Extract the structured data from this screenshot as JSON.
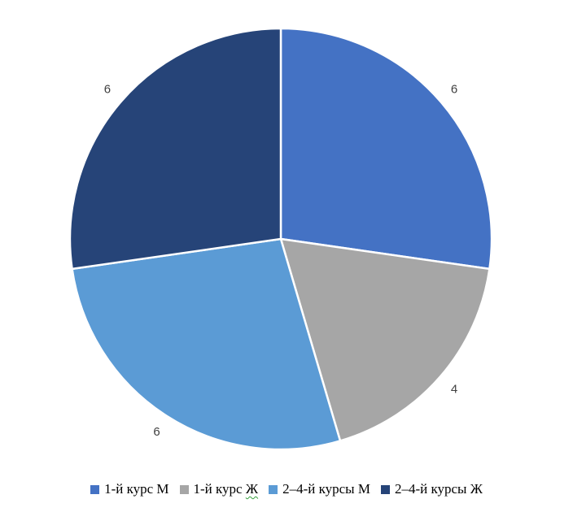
{
  "chart_data": {
    "type": "pie",
    "labels": [
      "1-й курс М",
      "1-й курс Ж",
      "2–4-й курсы М",
      "2–4-й курсы Ж"
    ],
    "values": [
      6,
      4,
      6,
      6
    ],
    "data_labels": [
      "6",
      "4",
      "6",
      "6"
    ],
    "colors": [
      "#4472C4",
      "#A6A6A6",
      "#5B9BD5",
      "#264478"
    ],
    "start_angle_deg": -90,
    "direction": "clockwise",
    "slice_border_color": "#FFFFFF",
    "label_color": "#3F3F3F",
    "legend_position": "bottom",
    "title": ""
  },
  "legend": {
    "items": [
      {
        "label": "1-й курс М",
        "color": "#4472C4"
      },
      {
        "label_prefix": "1-й курс ",
        "label_spellcheck": "Ж",
        "color": "#A6A6A6",
        "spellcheck_underline_color": "#36A03C"
      },
      {
        "label": "2–4-й курсы М",
        "color": "#5B9BD5"
      },
      {
        "label": "2–4-й курсы Ж",
        "color": "#264478"
      }
    ]
  }
}
